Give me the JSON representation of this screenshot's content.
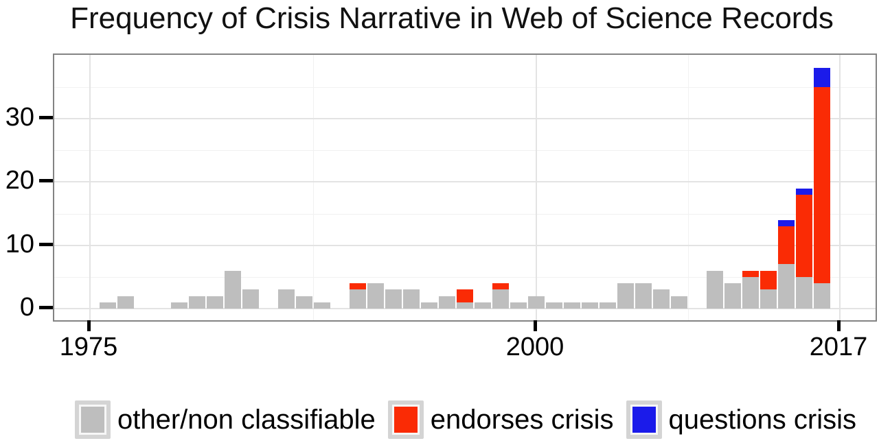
{
  "page": {
    "background": "#FFFFFF"
  },
  "colors": {
    "panel_border": "#838383",
    "grid_major": "#E3E3E3",
    "grid_minor": "#F1F1F1",
    "tick": "#000000",
    "text": "#000000",
    "legend_key_bg": "#D4D4D4"
  },
  "chart_data": {
    "type": "bar",
    "stacked": true,
    "title": "Frequency of Crisis Narrative in Web of Science Records",
    "xlabel": "",
    "ylabel": "",
    "grid": true,
    "legend_position": "bottom",
    "ylim": [
      0,
      40
    ],
    "xlim": [
      1973,
      2019
    ],
    "x_ticks": [
      1975,
      2000,
      2017
    ],
    "x_minor_ticks": [
      1987.5,
      2008.5
    ],
    "y_ticks": [
      0,
      10,
      20,
      30
    ],
    "y_minor_ticks": [
      5,
      15,
      25,
      35
    ],
    "years": [
      1975,
      1976,
      1977,
      1978,
      1979,
      1980,
      1981,
      1982,
      1983,
      1984,
      1985,
      1986,
      1987,
      1988,
      1989,
      1990,
      1991,
      1992,
      1993,
      1994,
      1995,
      1996,
      1997,
      1998,
      1999,
      2000,
      2001,
      2002,
      2003,
      2004,
      2005,
      2006,
      2007,
      2008,
      2009,
      2010,
      2011,
      2012,
      2013,
      2014,
      2015,
      2016,
      2017
    ],
    "series": [
      {
        "name": "other/non classifiable",
        "color": "#BEBEBE",
        "values": [
          0,
          1,
          2,
          0,
          0,
          1,
          2,
          2,
          6,
          3,
          0,
          3,
          2,
          1,
          0,
          3,
          4,
          3,
          3,
          1,
          2,
          1,
          1,
          3,
          1,
          2,
          1,
          1,
          1,
          1,
          4,
          4,
          3,
          2,
          0,
          6,
          4,
          5,
          3,
          7,
          5,
          4,
          0
        ]
      },
      {
        "name": "endorses crisis",
        "color": "#FA2B05",
        "values": [
          0,
          0,
          0,
          0,
          0,
          0,
          0,
          0,
          0,
          0,
          0,
          0,
          0,
          0,
          0,
          1,
          0,
          0,
          0,
          0,
          0,
          2,
          0,
          1,
          0,
          0,
          0,
          0,
          0,
          0,
          0,
          0,
          0,
          0,
          0,
          0,
          0,
          1,
          3,
          6,
          13,
          31,
          0
        ]
      },
      {
        "name": "questions crisis",
        "color": "#1B1BEA",
        "values": [
          0,
          0,
          0,
          0,
          0,
          0,
          0,
          0,
          0,
          0,
          0,
          0,
          0,
          0,
          0,
          0,
          0,
          0,
          0,
          0,
          0,
          0,
          0,
          0,
          0,
          0,
          0,
          0,
          0,
          0,
          0,
          0,
          0,
          0,
          0,
          0,
          0,
          0,
          0,
          1,
          1,
          3,
          0
        ]
      }
    ]
  }
}
